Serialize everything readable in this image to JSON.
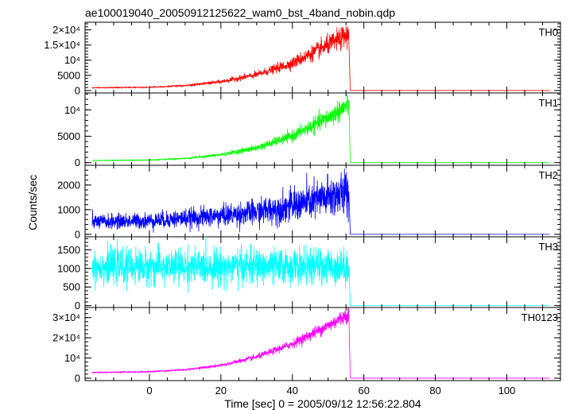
{
  "chart_data": {
    "type": "line",
    "title": "ae100019040_20050912125622_wam0_bst_4band_nobin.qdp",
    "xlabel": "Time [sec] 0 = 2005/09/12 12:56:22.804",
    "ylabel": "Counts/sec",
    "xlim": [
      -18,
      115
    ],
    "x_ticks": [
      0,
      20,
      40,
      60,
      80,
      100
    ],
    "x_tick_labels": [
      "0",
      "20",
      "40",
      "60",
      "80",
      "100"
    ],
    "grid": false,
    "data_range_x": [
      -16,
      112
    ],
    "drop_time": 55.8,
    "panels": [
      {
        "label": "TH0",
        "color": "#ff0000",
        "ylim": [
          -800,
          22500
        ],
        "y_ticks": [
          0,
          5000,
          10000,
          15000,
          20000
        ],
        "y_tick_labels": [
          "0",
          "5000",
          "10⁴",
          "1.5×10⁴",
          "2×10⁴"
        ],
        "profile": [
          {
            "x": -16,
            "y": 900
          },
          {
            "x": 0,
            "y": 1100
          },
          {
            "x": 10,
            "y": 1600
          },
          {
            "x": 20,
            "y": 2900
          },
          {
            "x": 30,
            "y": 5200
          },
          {
            "x": 40,
            "y": 9000
          },
          {
            "x": 50,
            "y": 15000
          },
          {
            "x": 55.8,
            "y": 18500
          }
        ],
        "noise": 0.1,
        "post_level": 0
      },
      {
        "label": "TH1",
        "color": "#00ff00",
        "ylim": [
          -500,
          13200
        ],
        "y_ticks": [
          0,
          5000,
          10000
        ],
        "y_tick_labels": [
          "0",
          "5000",
          "10⁴"
        ],
        "profile": [
          {
            "x": -16,
            "y": 400
          },
          {
            "x": 0,
            "y": 500
          },
          {
            "x": 10,
            "y": 800
          },
          {
            "x": 20,
            "y": 1500
          },
          {
            "x": 30,
            "y": 2800
          },
          {
            "x": 40,
            "y": 5000
          },
          {
            "x": 50,
            "y": 8500
          },
          {
            "x": 55.8,
            "y": 11000
          }
        ],
        "noise": 0.1,
        "post_level": 0
      },
      {
        "label": "TH2",
        "color": "#0000ff",
        "ylim": [
          -100,
          2800
        ],
        "y_ticks": [
          0,
          1000,
          2000
        ],
        "y_tick_labels": [
          "0",
          "1000",
          "2000"
        ],
        "profile": [
          {
            "x": -16,
            "y": 500
          },
          {
            "x": 0,
            "y": 550
          },
          {
            "x": 10,
            "y": 650
          },
          {
            "x": 20,
            "y": 750
          },
          {
            "x": 30,
            "y": 900
          },
          {
            "x": 40,
            "y": 1150
          },
          {
            "x": 50,
            "y": 1500
          },
          {
            "x": 55.8,
            "y": 1700
          }
        ],
        "noise": 0.28,
        "post_level": 0
      },
      {
        "label": "TH3",
        "color": "#00ffff",
        "ylim": [
          -50,
          1850
        ],
        "y_ticks": [
          0,
          500,
          1000,
          1500
        ],
        "y_tick_labels": [
          "0",
          "500",
          "1000",
          "1500"
        ],
        "profile": [
          {
            "x": -16,
            "y": 1050
          },
          {
            "x": 55.8,
            "y": 1050
          }
        ],
        "noise": 0.22,
        "post_level": 0
      },
      {
        "label": "TH0123",
        "color": "#ff00ff",
        "ylim": [
          -1200,
          35000
        ],
        "y_ticks": [
          0,
          10000,
          20000,
          30000
        ],
        "y_tick_labels": [
          "0",
          "10⁴",
          "2×10⁴",
          "3×10⁴"
        ],
        "profile": [
          {
            "x": -16,
            "y": 2800
          },
          {
            "x": 0,
            "y": 3200
          },
          {
            "x": 10,
            "y": 4200
          },
          {
            "x": 20,
            "y": 6300
          },
          {
            "x": 30,
            "y": 10500
          },
          {
            "x": 40,
            "y": 17000
          },
          {
            "x": 50,
            "y": 26000
          },
          {
            "x": 55.8,
            "y": 32000
          }
        ],
        "noise": 0.06,
        "post_level": 0
      }
    ]
  }
}
